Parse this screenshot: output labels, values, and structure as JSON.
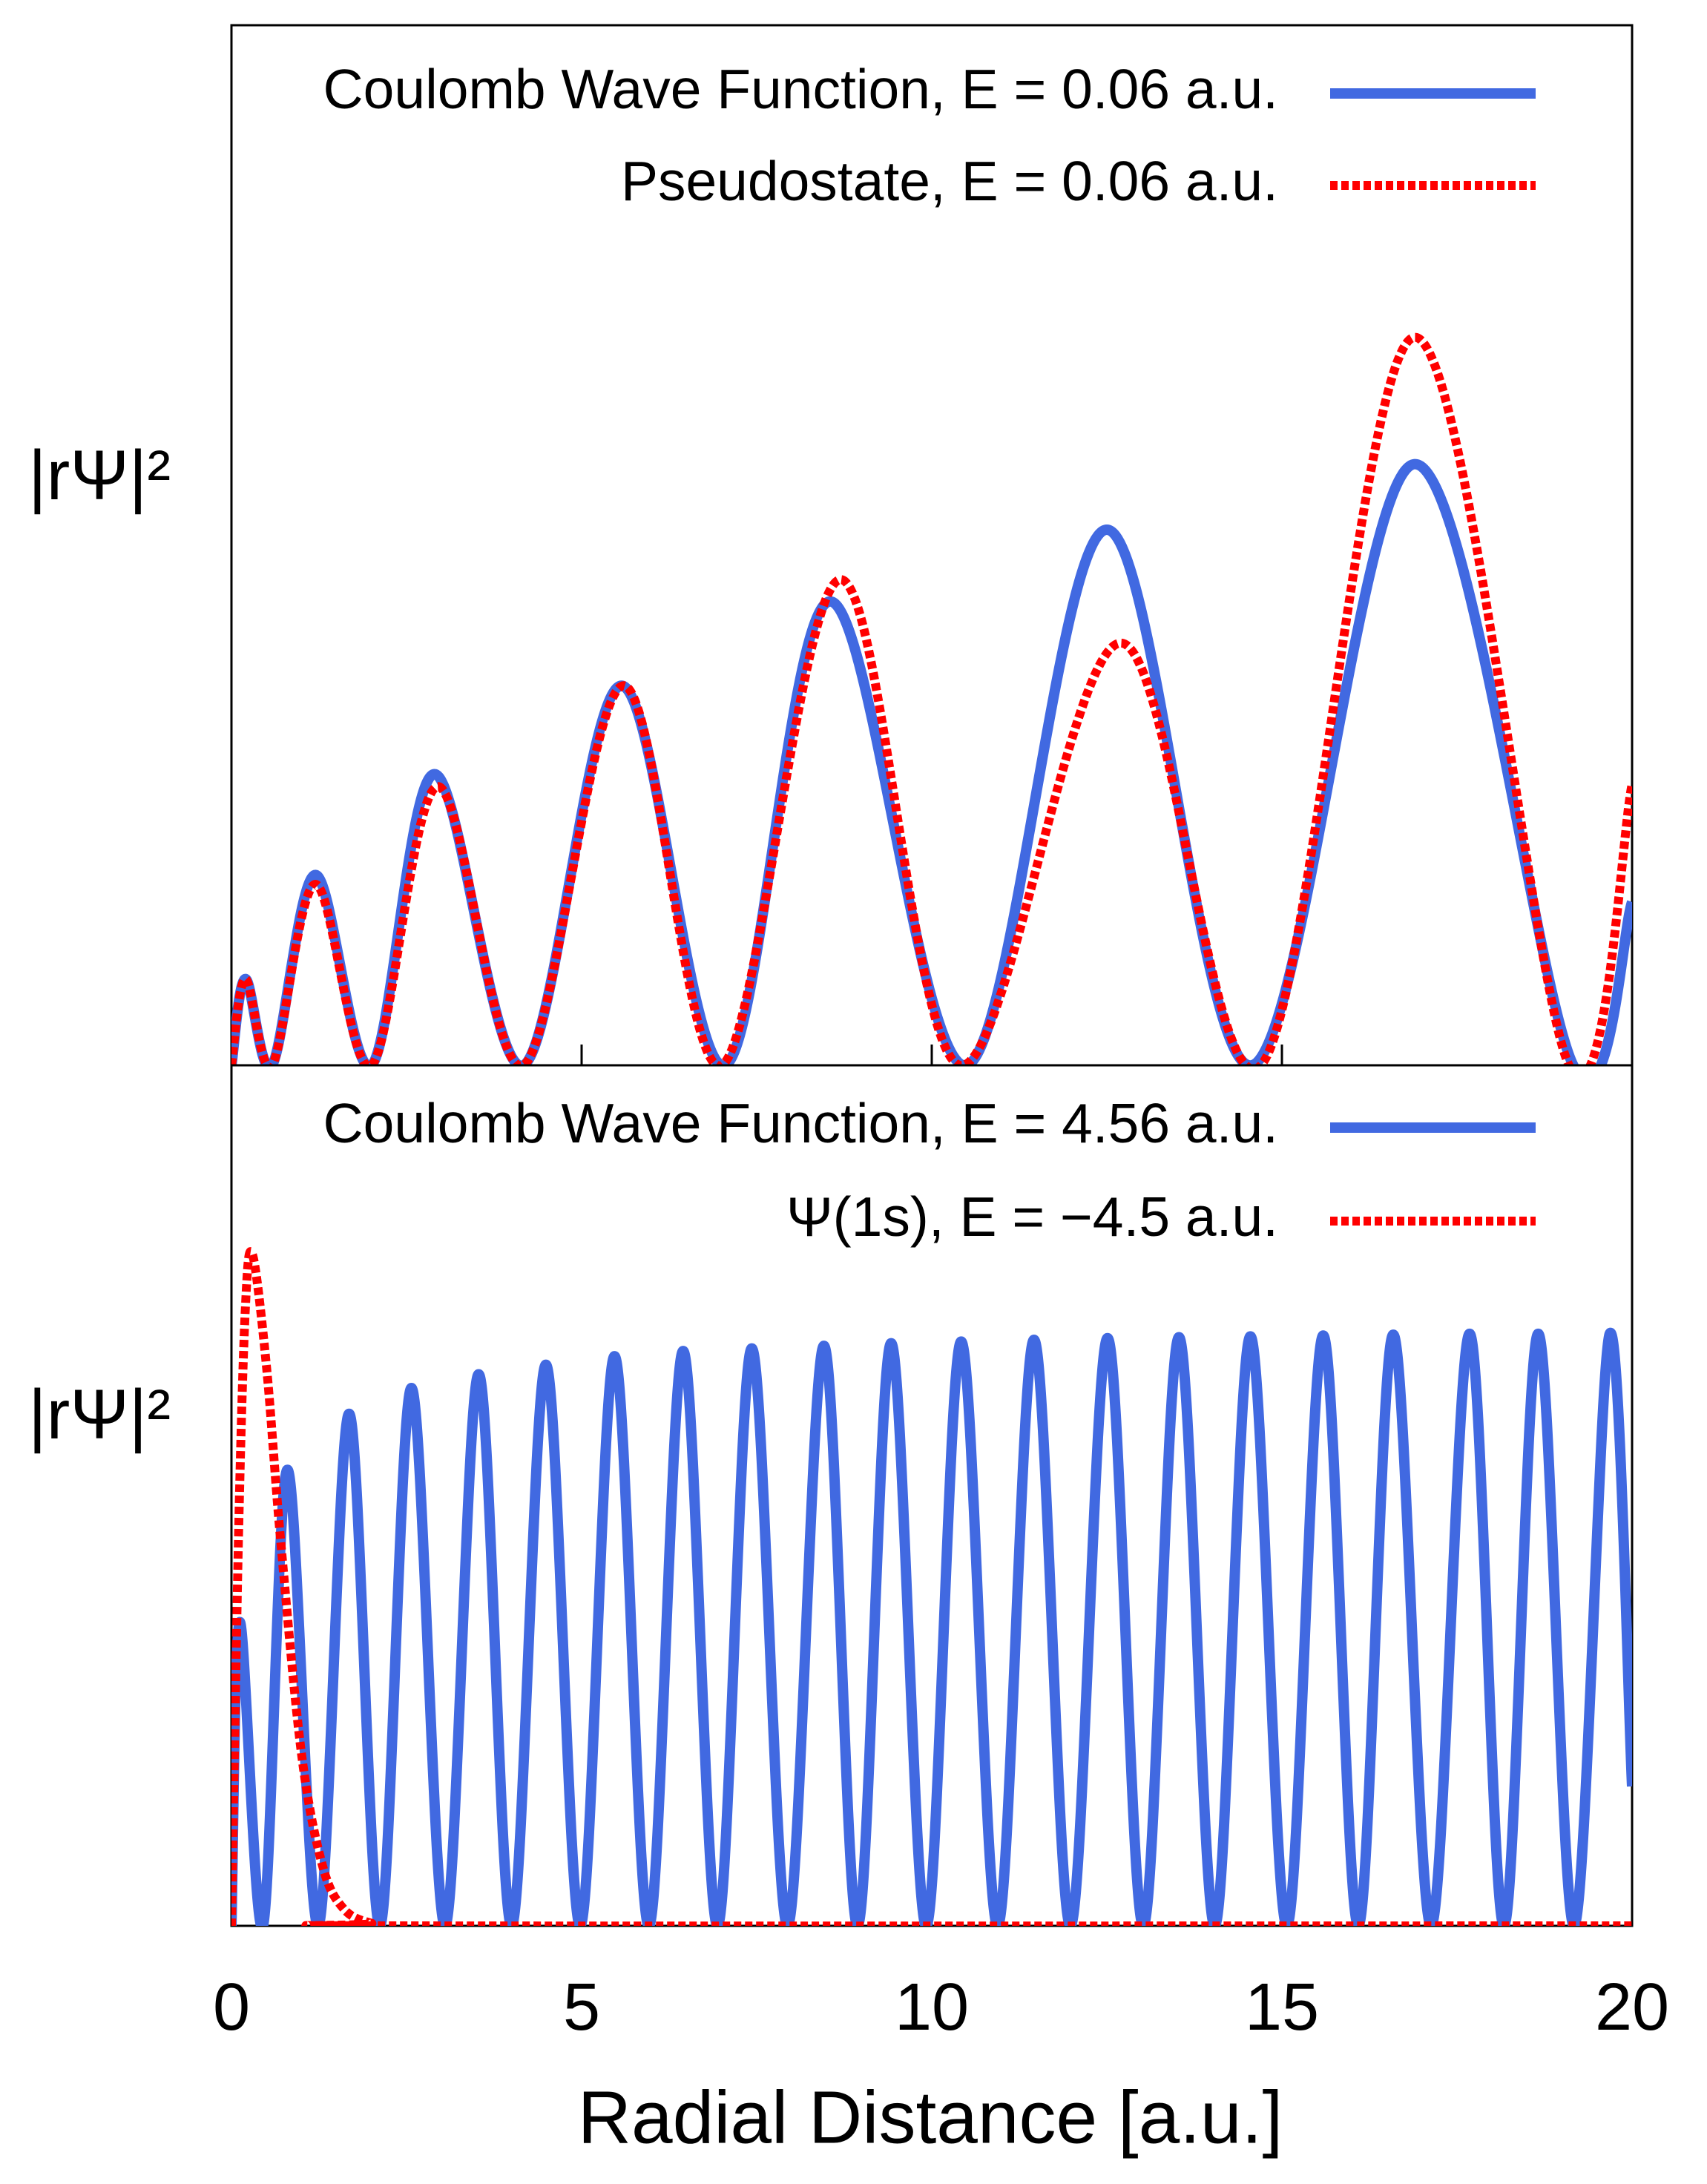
{
  "chart_data": [
    {
      "type": "line",
      "ylabel": "|rΨ|²",
      "xlim": [
        0,
        20
      ],
      "ylim": [
        0,
        1
      ],
      "xticks": [
        0,
        5,
        10,
        15,
        20
      ],
      "legend": "upper right",
      "series": [
        {
          "name": "Coulomb Wave Function, E = 0.06 a.u.",
          "color": "#4169e1",
          "style": "solid",
          "x": [
            0,
            0.2,
            0.58,
            1.2,
            2.0,
            2.9,
            4.17,
            5.57,
            7.05,
            8.55,
            10.5,
            12.5,
            14.57,
            16.9,
            19.16,
            20
          ],
          "values": [
            0,
            0.083,
            0,
            0.183,
            0,
            0.28,
            0,
            0.365,
            0,
            0.446,
            0,
            0.515,
            0,
            0.578,
            0,
            0.157
          ]
        },
        {
          "name": "Pseudostate, E = 0.06 a.u.",
          "color": "#ff0000",
          "style": "dashed",
          "x": [
            0,
            0.2,
            0.58,
            1.2,
            2.0,
            2.95,
            4.17,
            5.6,
            7.0,
            8.7,
            10.4,
            12.7,
            14.7,
            16.9,
            19.1,
            20
          ],
          "values": [
            0,
            0.083,
            0,
            0.174,
            0,
            0.268,
            0,
            0.365,
            0,
            0.467,
            0,
            0.406,
            0,
            0.7,
            0,
            0.27
          ]
        }
      ]
    },
    {
      "type": "line",
      "ylabel": "|rΨ|²",
      "xlabel": "Radial Distance [a.u.]",
      "xlim": [
        0,
        20
      ],
      "ylim": [
        0,
        1
      ],
      "xticks": [
        0,
        5,
        10,
        15,
        20
      ],
      "legend": "upper right",
      "series": [
        {
          "name": "Coulomb Wave Function, E = 4.56 a.u.",
          "color": "#4169e1",
          "style": "solid",
          "x": [
            0,
            0.12,
            0.45,
            0.8,
            1.24,
            1.68,
            2.12,
            2.57,
            3.05,
            3.53,
            4.0,
            4.49,
            4.98,
            5.47,
            5.96,
            6.45,
            6.94,
            7.43,
            7.94,
            8.46,
            8.94,
            9.42,
            9.92,
            10.42,
            10.94,
            11.46,
            11.98,
            12.51,
            13.02,
            13.53,
            14.04,
            14.55,
            15.07,
            15.59,
            16.09,
            16.59,
            17.13,
            17.68,
            18.17,
            18.66,
            19.17,
            19.68,
            20
          ],
          "values": [
            0,
            0.353,
            0,
            0.53,
            0,
            0.595,
            0,
            0.625,
            0,
            0.641,
            0,
            0.652,
            0,
            0.662,
            0,
            0.668,
            0,
            0.671,
            0,
            0.674,
            0,
            0.677,
            0,
            0.679,
            0,
            0.681,
            0,
            0.683,
            0,
            0.684,
            0,
            0.685,
            0,
            0.686,
            0,
            0.687,
            0,
            0.688,
            0,
            0.688,
            0,
            0.688,
            0.162
          ]
        },
        {
          "name": "Ψ(1s),  E = −4.5 a.u.",
          "color": "#ff0000",
          "style": "dashed",
          "x": [
            0,
            0.1,
            0.2,
            0.3,
            0.5,
            0.7,
            1.0,
            1.3,
            1.6,
            2.0,
            2.5,
            20
          ],
          "values": [
            0,
            0.45,
            0.72,
            0.78,
            0.65,
            0.45,
            0.2,
            0.07,
            0.02,
            0.003,
            0,
            0
          ]
        }
      ]
    }
  ]
}
